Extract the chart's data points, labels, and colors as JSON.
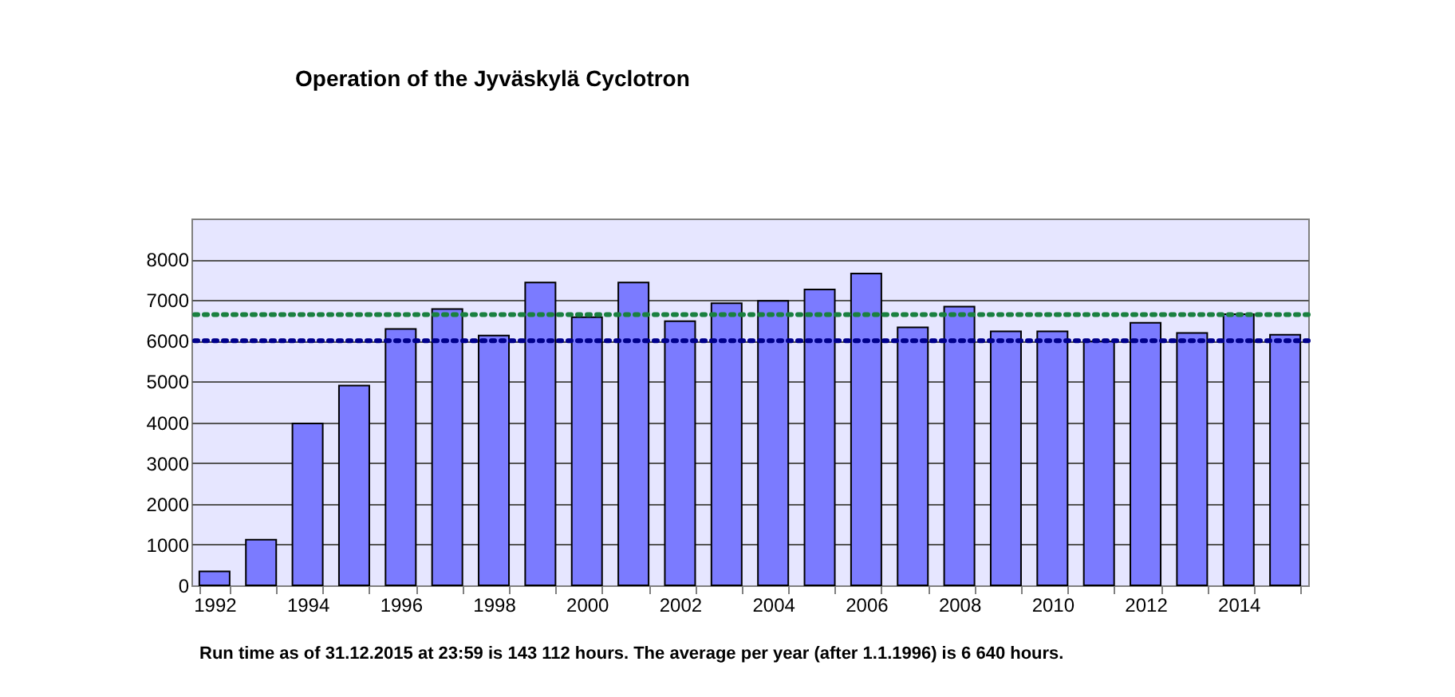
{
  "chart_data": {
    "type": "bar",
    "title": "Operation of the Jyväskylä Cyclotron",
    "categories": [
      "1992",
      null,
      "1994",
      null,
      "1996",
      null,
      "1998",
      null,
      "2000",
      null,
      "2002",
      null,
      "2004",
      null,
      "2006",
      null,
      "2008",
      null,
      "2010",
      null,
      "2012",
      null,
      "2014",
      null
    ],
    "values": [
      340,
      1120,
      3970,
      4900,
      6290,
      6780,
      6130,
      7430,
      6580,
      7430,
      6480,
      6920,
      6980,
      7260,
      7650,
      6330,
      6840,
      6230,
      6230,
      5980,
      6440,
      6190,
      6650,
      6150
    ],
    "color": "#7b7bff",
    "ylim": [
      0,
      9000
    ],
    "yticks": [
      0,
      1000,
      2000,
      3000,
      4000,
      5000,
      6000,
      7000,
      8000
    ],
    "grid": "y",
    "ref_lines": [
      {
        "axis": "y",
        "value": 6640,
        "color": "#1a8040",
        "line_style": "dotted"
      },
      {
        "axis": "y",
        "value": 6000,
        "color": "#00008b",
        "line_style": "dotted"
      }
    ],
    "annotations": [
      "Run time as of 31.12.2015 at 23:59 is 143 112 hours. The average per year (after 1.1.1996) is 6 640 hours."
    ]
  }
}
